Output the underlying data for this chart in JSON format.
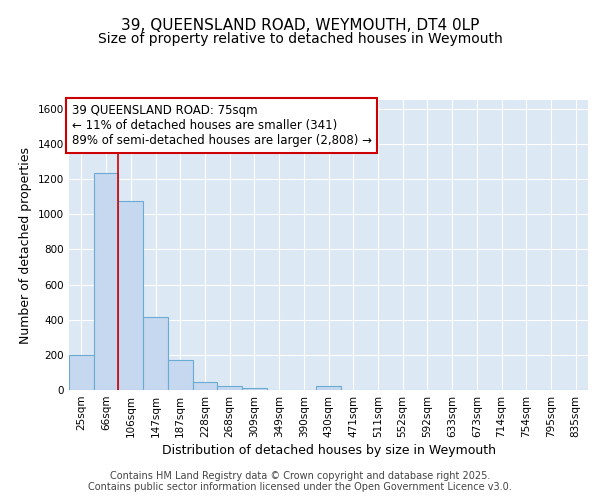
{
  "title": "39, QUEENSLAND ROAD, WEYMOUTH, DT4 0LP",
  "subtitle": "Size of property relative to detached houses in Weymouth",
  "xlabel": "Distribution of detached houses by size in Weymouth",
  "ylabel": "Number of detached properties",
  "categories": [
    "25sqm",
    "66sqm",
    "106sqm",
    "147sqm",
    "187sqm",
    "228sqm",
    "268sqm",
    "309sqm",
    "349sqm",
    "390sqm",
    "430sqm",
    "471sqm",
    "511sqm",
    "552sqm",
    "592sqm",
    "633sqm",
    "673sqm",
    "714sqm",
    "754sqm",
    "795sqm",
    "835sqm"
  ],
  "values": [
    200,
    1235,
    1075,
    415,
    170,
    45,
    22,
    12,
    0,
    0,
    20,
    0,
    0,
    0,
    0,
    0,
    0,
    0,
    0,
    0,
    0
  ],
  "bar_color": "#c5d8ef",
  "bar_edge_color": "#6aabd2",
  "vline_x": 1.5,
  "vline_color": "#cc0000",
  "annotation_text": "39 QUEENSLAND ROAD: 75sqm\n← 11% of detached houses are smaller (341)\n89% of semi-detached houses are larger (2,808) →",
  "annotation_box_facecolor": "#ffffff",
  "annotation_box_edgecolor": "#cc0000",
  "ylim": [
    0,
    1650
  ],
  "yticks": [
    0,
    200,
    400,
    600,
    800,
    1000,
    1200,
    1400,
    1600
  ],
  "bg_color": "#dde8f5",
  "grid_color": "#ffffff",
  "footer_text": "Contains HM Land Registry data © Crown copyright and database right 2025.\nContains public sector information licensed under the Open Government Licence v3.0.",
  "title_fontsize": 11,
  "subtitle_fontsize": 10,
  "axis_label_fontsize": 9,
  "tick_fontsize": 7.5,
  "annotation_fontsize": 8.5,
  "footer_fontsize": 7
}
